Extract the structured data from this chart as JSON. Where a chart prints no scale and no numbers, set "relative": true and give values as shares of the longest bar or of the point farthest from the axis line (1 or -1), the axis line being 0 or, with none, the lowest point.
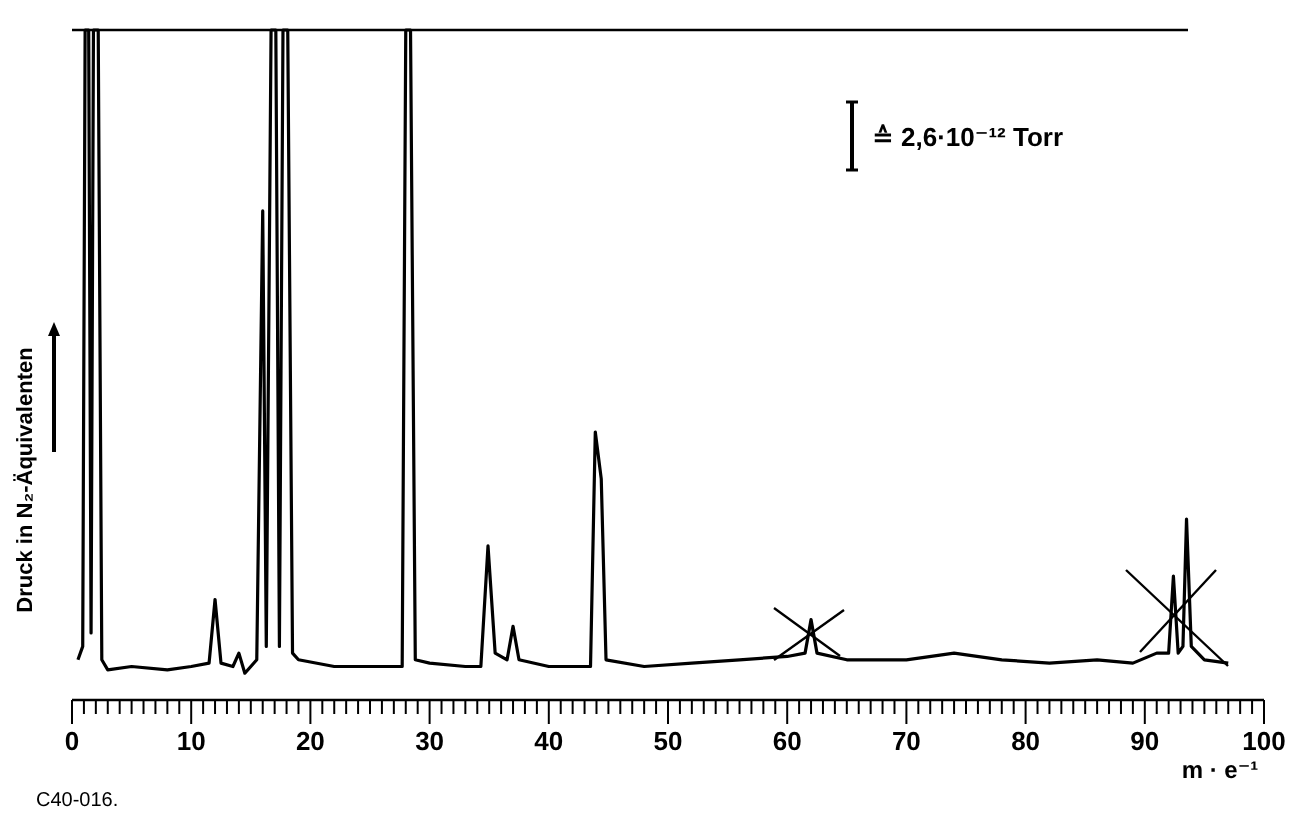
{
  "chart_data": {
    "type": "line",
    "relative": true,
    "xlabel": "m · e⁻¹",
    "ylabel": "Druck in N₂-Äquivalenten",
    "tick_labels": "x",
    "grid": false,
    "marker": "none",
    "line_style": "solid",
    "annotations": [
      "≙ 2,6·10⁻¹² Torr",
      "C40-016."
    ],
    "xlim": [
      0,
      100
    ],
    "xticks": [
      0,
      {
        "value": 1,
        "label": null
      },
      {
        "value": 2,
        "label": null
      },
      {
        "value": 3,
        "label": null
      },
      {
        "value": 4,
        "label": null
      },
      {
        "value": 5,
        "label": null
      },
      {
        "value": 6,
        "label": null
      },
      {
        "value": 7,
        "label": null
      },
      {
        "value": 8,
        "label": null
      },
      {
        "value": 9,
        "label": null
      },
      10,
      {
        "value": 11,
        "label": null
      },
      {
        "value": 12,
        "label": null
      },
      {
        "value": 13,
        "label": null
      },
      {
        "value": 14,
        "label": null
      },
      {
        "value": 15,
        "label": null
      },
      {
        "value": 16,
        "label": null
      },
      {
        "value": 17,
        "label": null
      },
      {
        "value": 18,
        "label": null
      },
      {
        "value": 19,
        "label": null
      },
      20,
      {
        "value": 21,
        "label": null
      },
      {
        "value": 22,
        "label": null
      },
      {
        "value": 23,
        "label": null
      },
      {
        "value": 24,
        "label": null
      },
      {
        "value": 25,
        "label": null
      },
      {
        "value": 26,
        "label": null
      },
      {
        "value": 27,
        "label": null
      },
      {
        "value": 28,
        "label": null
      },
      {
        "value": 29,
        "label": null
      },
      30,
      {
        "value": 31,
        "label": null
      },
      {
        "value": 32,
        "label": null
      },
      {
        "value": 33,
        "label": null
      },
      {
        "value": 34,
        "label": null
      },
      {
        "value": 35,
        "label": null
      },
      {
        "value": 36,
        "label": null
      },
      {
        "value": 37,
        "label": null
      },
      {
        "value": 38,
        "label": null
      },
      {
        "value": 39,
        "label": null
      },
      40,
      {
        "value": 41,
        "label": null
      },
      {
        "value": 42,
        "label": null
      },
      {
        "value": 43,
        "label": null
      },
      {
        "value": 44,
        "label": null
      },
      {
        "value": 45,
        "label": null
      },
      {
        "value": 46,
        "label": null
      },
      {
        "value": 47,
        "label": null
      },
      {
        "value": 48,
        "label": null
      },
      {
        "value": 49,
        "label": null
      },
      50,
      {
        "value": 51,
        "label": null
      },
      {
        "value": 52,
        "label": null
      },
      {
        "value": 53,
        "label": null
      },
      {
        "value": 54,
        "label": null
      },
      {
        "value": 55,
        "label": null
      },
      {
        "value": 56,
        "label": null
      },
      {
        "value": 57,
        "label": null
      },
      {
        "value": 58,
        "label": null
      },
      {
        "value": 59,
        "label": null
      },
      60,
      {
        "value": 61,
        "label": null
      },
      {
        "value": 62,
        "label": null
      },
      {
        "value": 63,
        "label": null
      },
      {
        "value": 64,
        "label": null
      },
      {
        "value": 65,
        "label": null
      },
      {
        "value": 66,
        "label": null
      },
      {
        "value": 67,
        "label": null
      },
      {
        "value": 68,
        "label": null
      },
      {
        "value": 69,
        "label": null
      },
      70,
      {
        "value": 71,
        "label": null
      },
      {
        "value": 72,
        "label": null
      },
      {
        "value": 73,
        "label": null
      },
      {
        "value": 74,
        "label": null
      },
      {
        "value": 75,
        "label": null
      },
      {
        "value": 76,
        "label": null
      },
      {
        "value": 77,
        "label": null
      },
      {
        "value": 78,
        "label": null
      },
      {
        "value": 79,
        "label": null
      },
      80,
      {
        "value": 81,
        "label": null
      },
      {
        "value": 82,
        "label": null
      },
      {
        "value": 83,
        "label": null
      },
      {
        "value": 84,
        "label": null
      },
      {
        "value": 85,
        "label": null
      },
      {
        "value": 86,
        "label": null
      },
      {
        "value": 87,
        "label": null
      },
      {
        "value": 88,
        "label": null
      },
      {
        "value": 89,
        "label": null
      },
      90,
      {
        "value": 91,
        "label": null
      },
      {
        "value": 92,
        "label": null
      },
      {
        "value": 93,
        "label": null
      },
      {
        "value": 94,
        "label": null
      },
      {
        "value": 95,
        "label": null
      },
      {
        "value": 96,
        "label": null
      },
      {
        "value": 97,
        "label": null
      },
      {
        "value": 98,
        "label": null
      },
      {
        "value": 99,
        "label": null
      },
      100
    ],
    "series": [
      {
        "color": "#000000",
        "x": [
          0.5,
          0.9,
          1.1,
          1.4,
          1.6,
          1.8,
          2.2,
          2.5,
          3,
          5,
          8,
          10,
          11.5,
          12,
          12.5,
          13.5,
          14,
          14.5,
          15.5,
          16,
          16.3,
          16.7,
          17.1,
          17.4,
          17.7,
          18.1,
          18.5,
          19,
          22,
          26,
          27.7,
          28,
          28.4,
          28.8,
          30,
          33,
          34.3,
          34.9,
          35.5,
          36.5,
          37,
          37.5,
          40,
          43.5,
          43.9,
          44.4,
          44.8,
          48,
          52,
          56,
          60,
          61.5,
          62,
          62.5,
          65,
          70,
          74,
          78,
          82,
          86,
          89,
          91,
          92,
          92.4,
          92.8,
          93.2,
          93.5,
          93.9,
          95,
          97
        ],
        "values": [
          0.06,
          0.08,
          1,
          1,
          0.1,
          1,
          1,
          0.06,
          0.045,
          0.05,
          0.045,
          0.05,
          0.055,
          0.15,
          0.055,
          0.05,
          0.07,
          0.04,
          0.06,
          0.73,
          0.08,
          1,
          1,
          0.08,
          1,
          1,
          0.07,
          0.06,
          0.05,
          0.05,
          0.05,
          1,
          1,
          0.06,
          0.055,
          0.05,
          0.05,
          0.23,
          0.07,
          0.06,
          0.11,
          0.06,
          0.05,
          0.05,
          0.4,
          0.33,
          0.06,
          0.05,
          0.055,
          0.06,
          0.065,
          0.07,
          0.12,
          0.07,
          0.06,
          0.06,
          0.07,
          0.06,
          0.055,
          0.06,
          0.055,
          0.07,
          0.07,
          0.185,
          0.07,
          0.08,
          0.27,
          0.08,
          0.06,
          0.055
        ]
      }
    ]
  }
}
